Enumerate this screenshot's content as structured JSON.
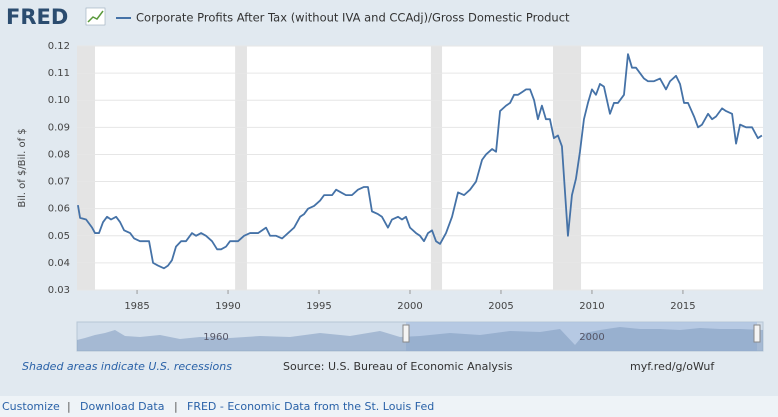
{
  "header": {
    "logo": "FRED"
  },
  "chart_data": {
    "type": "line",
    "y_label": "Bil. of $/Bil. of $",
    "x": [
      1981.75,
      1981.87,
      1982.2,
      1982.53,
      1982.69,
      1982.91,
      1983.13,
      1983.35,
      1983.57,
      1983.85,
      1984.07,
      1984.29,
      1984.62,
      1984.84,
      1985.16,
      1985.66,
      1985.88,
      1986.15,
      1986.48,
      1986.7,
      1986.92,
      1987.14,
      1987.42,
      1987.69,
      1988.02,
      1988.24,
      1988.52,
      1988.79,
      1989.12,
      1989.4,
      1989.62,
      1989.89,
      1990.11,
      1990.55,
      1990.88,
      1991.21,
      1991.65,
      1992.09,
      1992.31,
      1992.64,
      1992.97,
      1993.3,
      1993.63,
      1993.96,
      1994.18,
      1994.4,
      1994.73,
      1995.06,
      1995.28,
      1995.72,
      1995.94,
      1996.21,
      1996.48,
      1996.81,
      1997.14,
      1997.47,
      1997.69,
      1997.91,
      1998.24,
      1998.46,
      1998.79,
      1999.01,
      1999.34,
      1999.56,
      1999.78,
      2000.0,
      2000.33,
      2000.55,
      2000.77,
      2000.99,
      2001.21,
      2001.43,
      2001.65,
      2001.98,
      2002.31,
      2002.64,
      2002.97,
      2003.3,
      2003.63,
      2003.96,
      2004.18,
      2004.51,
      2004.73,
      2004.95,
      2005.28,
      2005.5,
      2005.72,
      2005.94,
      2006.16,
      2006.38,
      2006.6,
      2006.82,
      2007.03,
      2007.25,
      2007.47,
      2007.69,
      2007.91,
      2008.13,
      2008.35,
      2008.68,
      2008.9,
      2009.12,
      2009.34,
      2009.56,
      2009.78,
      2010.0,
      2010.22,
      2010.44,
      2010.66,
      2010.99,
      2011.21,
      2011.43,
      2011.76,
      2011.98,
      2012.2,
      2012.42,
      2012.86,
      2013.08,
      2013.41,
      2013.74,
      2014.07,
      2014.29,
      2014.62,
      2014.84,
      2015.06,
      2015.28,
      2015.61,
      2015.83,
      2016.05,
      2016.38,
      2016.6,
      2016.82,
      2017.15,
      2017.37,
      2017.7,
      2017.92,
      2018.14,
      2018.47,
      2018.8,
      2019.12,
      2019.34
    ],
    "series": [
      {
        "name": "Corporate Profits After Tax (without IVA and CCAdj)/Gross Domestic Product",
        "color": "#4572a7",
        "values": [
          0.0613,
          0.0566,
          0.056,
          0.053,
          0.051,
          0.051,
          0.055,
          0.057,
          0.056,
          0.057,
          0.055,
          0.052,
          0.051,
          0.049,
          0.048,
          0.048,
          0.04,
          0.039,
          0.038,
          0.039,
          0.041,
          0.046,
          0.048,
          0.048,
          0.051,
          0.05,
          0.051,
          0.05,
          0.048,
          0.045,
          0.045,
          0.046,
          0.048,
          0.048,
          0.05,
          0.051,
          0.051,
          0.053,
          0.05,
          0.05,
          0.049,
          0.051,
          0.053,
          0.057,
          0.058,
          0.06,
          0.061,
          0.063,
          0.065,
          0.065,
          0.067,
          0.066,
          0.065,
          0.065,
          0.067,
          0.068,
          0.068,
          0.059,
          0.058,
          0.057,
          0.053,
          0.056,
          0.057,
          0.056,
          0.057,
          0.053,
          0.051,
          0.05,
          0.048,
          0.051,
          0.052,
          0.048,
          0.047,
          0.051,
          0.057,
          0.066,
          0.065,
          0.067,
          0.07,
          0.078,
          0.08,
          0.082,
          0.081,
          0.096,
          0.098,
          0.099,
          0.102,
          0.102,
          0.103,
          0.104,
          0.104,
          0.1,
          0.093,
          0.098,
          0.093,
          0.093,
          0.086,
          0.087,
          0.083,
          0.05,
          0.065,
          0.071,
          0.081,
          0.093,
          0.099,
          0.104,
          0.102,
          0.106,
          0.105,
          0.095,
          0.099,
          0.099,
          0.102,
          0.117,
          0.112,
          0.112,
          0.108,
          0.107,
          0.107,
          0.108,
          0.104,
          0.107,
          0.109,
          0.106,
          0.099,
          0.099,
          0.094,
          0.09,
          0.091,
          0.095,
          0.093,
          0.094,
          0.097,
          0.096,
          0.095,
          0.084,
          0.091,
          0.09,
          0.09,
          0.086,
          0.087
        ]
      }
    ],
    "xlim": [
      1981.7,
      2019.4
    ],
    "xticks": [
      1985,
      1990,
      1995,
      2000,
      2005,
      2010,
      2015
    ],
    "ylim": [
      0.03,
      0.12
    ],
    "yticks": [
      0.03,
      0.04,
      0.05,
      0.06,
      0.07,
      0.08,
      0.09,
      {
        "value": 0.1,
        "label": "0.10"
      },
      0.11,
      0.12
    ],
    "recessions": [
      [
        1981.7,
        1982.69
      ],
      [
        1990.39,
        1991.04
      ],
      [
        2001.15,
        2001.76
      ],
      [
        2007.86,
        2009.4
      ]
    ],
    "grid": true
  },
  "navigator": {
    "labels": [
      "1960",
      "2000"
    ]
  },
  "notes": {
    "recessions": "Shaded areas indicate U.S. recessions",
    "source": "Source: U.S. Bureau of Economic Analysis",
    "url": "myf.red/g/oWuf"
  },
  "footer": {
    "links": [
      "Customize",
      "Download Data",
      "FRED - Economic Data from the St. Louis Fed"
    ],
    "separator": "|"
  }
}
